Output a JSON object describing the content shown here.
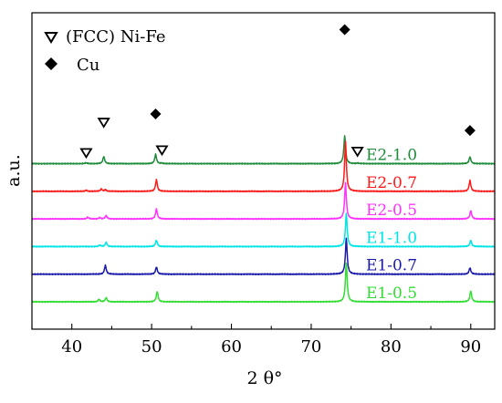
{
  "chart_data": {
    "type": "line",
    "xlabel": "2 θ°",
    "ylabel": "a.u.",
    "xlim": [
      35,
      93
    ],
    "x_ticks": [
      40,
      50,
      60,
      70,
      80,
      90
    ],
    "grid": false,
    "y_ticks_shown": false,
    "legend_placement": "top-left",
    "legend": [
      {
        "label": "(FCC) Ni-Fe",
        "marker": "open-down-triangle"
      },
      {
        "label": "Cu",
        "marker": "filled-diamond"
      }
    ],
    "series": [
      {
        "name": "E2-1.0",
        "color": "#1e8c3a",
        "baseline": 5,
        "peaks": [
          {
            "x": 41.8,
            "h": 0.03
          },
          {
            "x": 44.0,
            "h": 0.26
          },
          {
            "x": 50.5,
            "h": 0.34
          },
          {
            "x": 51.3,
            "h": 0.02
          },
          {
            "x": 74.2,
            "h": 1.0
          },
          {
            "x": 75.8,
            "h": 0.02
          },
          {
            "x": 89.9,
            "h": 0.25
          }
        ]
      },
      {
        "name": "E2-0.7",
        "color": "#ff1a1a",
        "baseline": 4,
        "peaks": [
          {
            "x": 41.8,
            "h": 0.04
          },
          {
            "x": 43.7,
            "h": 0.08
          },
          {
            "x": 44.2,
            "h": 0.06
          },
          {
            "x": 50.6,
            "h": 0.42
          },
          {
            "x": 74.3,
            "h": 1.8
          },
          {
            "x": 89.9,
            "h": 0.39
          }
        ]
      },
      {
        "name": "E2-0.5",
        "color": "#ff33ff",
        "baseline": 3,
        "peaks": [
          {
            "x": 42.0,
            "h": 0.06
          },
          {
            "x": 43.5,
            "h": 0.05
          },
          {
            "x": 44.3,
            "h": 0.12
          },
          {
            "x": 50.6,
            "h": 0.36
          },
          {
            "x": 74.3,
            "h": 1.3
          },
          {
            "x": 90.0,
            "h": 0.3
          }
        ]
      },
      {
        "name": "E1-1.0",
        "color": "#00e5e5",
        "baseline": 2,
        "peaks": [
          {
            "x": 43.5,
            "h": 0.05
          },
          {
            "x": 44.3,
            "h": 0.15
          },
          {
            "x": 50.6,
            "h": 0.23
          },
          {
            "x": 74.4,
            "h": 1.2
          },
          {
            "x": 90.0,
            "h": 0.22
          }
        ]
      },
      {
        "name": "E1-0.7",
        "color": "#1a1aaa",
        "baseline": 1,
        "peaks": [
          {
            "x": 44.2,
            "h": 0.32
          },
          {
            "x": 50.6,
            "h": 0.26
          },
          {
            "x": 74.4,
            "h": 1.3
          },
          {
            "x": 89.9,
            "h": 0.23
          }
        ]
      },
      {
        "name": "E1-0.5",
        "color": "#33dd33",
        "baseline": 0,
        "peaks": [
          {
            "x": 43.4,
            "h": 0.09
          },
          {
            "x": 44.3,
            "h": 0.15
          },
          {
            "x": 50.7,
            "h": 0.37
          },
          {
            "x": 74.4,
            "h": 1.4
          },
          {
            "x": 90.0,
            "h": 0.39
          }
        ]
      }
    ],
    "markers": [
      {
        "type": "open-down-triangle",
        "x": 41.8,
        "y": 5.4
      },
      {
        "type": "open-down-triangle",
        "x": 44.0,
        "y": 6.5
      },
      {
        "type": "filled-diamond",
        "x": 50.5,
        "y": 6.8
      },
      {
        "type": "open-down-triangle",
        "x": 51.3,
        "y": 5.5
      },
      {
        "type": "filled-diamond",
        "x": 74.2,
        "y": 9.85
      },
      {
        "type": "open-down-triangle",
        "x": 75.8,
        "y": 5.45
      },
      {
        "type": "filled-diamond",
        "x": 89.9,
        "y": 6.2
      }
    ]
  }
}
